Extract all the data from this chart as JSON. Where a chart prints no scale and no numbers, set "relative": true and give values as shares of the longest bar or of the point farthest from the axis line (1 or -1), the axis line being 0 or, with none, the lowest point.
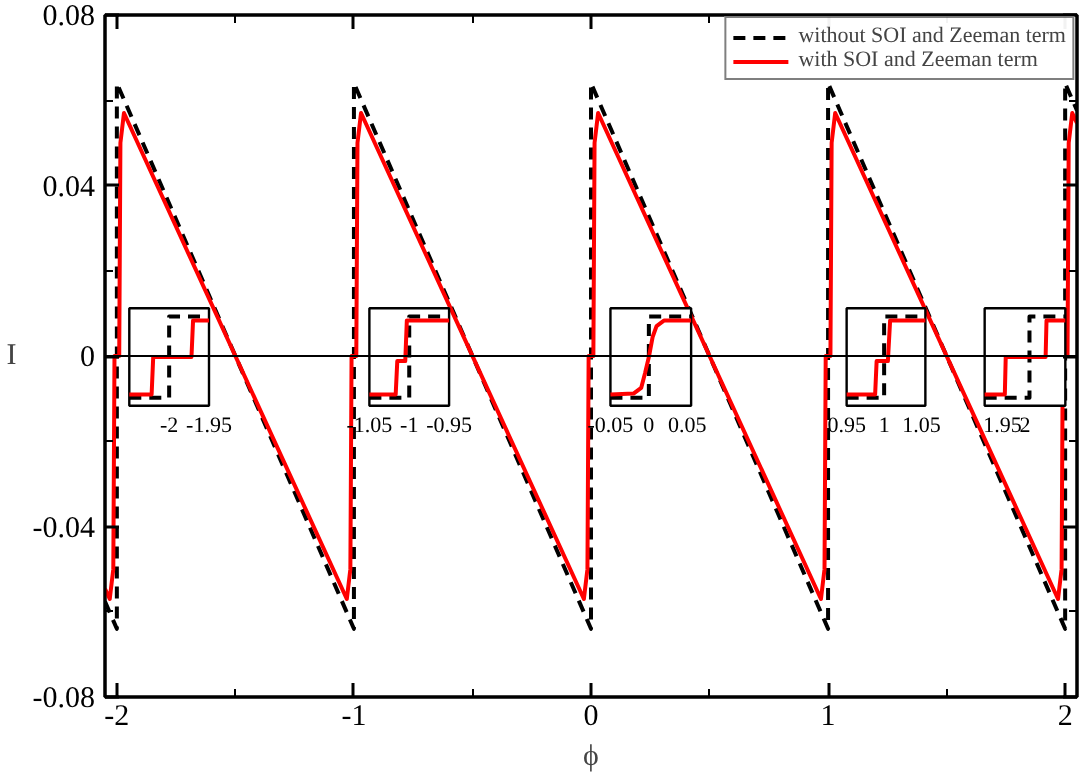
{
  "chart_data": [
    {
      "type": "line",
      "xlabel": "ϕ",
      "ylabel": "I",
      "xlim": [
        -2.05,
        2.05
      ],
      "ylim": [
        -0.08,
        0.08
      ],
      "xticks": [
        -2,
        -1,
        0,
        1,
        2
      ],
      "yticks": [
        -0.08,
        -0.04,
        0,
        0.04,
        0.08
      ],
      "grid": false,
      "legend": "top right",
      "ref_lines": [
        {
          "axis": "y",
          "value": 0,
          "color": "#000000",
          "line_style": "solid"
        }
      ],
      "series": [
        {
          "name": "without SOI and Zeeman term",
          "color": "#000000",
          "line_style": "dashed",
          "x": [
            -2.05,
            -2,
            -2,
            -1,
            -1,
            0,
            0,
            1,
            1,
            2,
            2,
            2.05
          ],
          "values": [
            -0.0576,
            -0.064,
            0.064,
            -0.064,
            0.064,
            -0.064,
            0.064,
            -0.064,
            0.064,
            -0.064,
            0.064,
            0.0576
          ]
        },
        {
          "name": "with SOI and Zeeman term",
          "color": "#ff0000",
          "line_style": "solid",
          "x": [
            -2.05,
            -2.03,
            -2.015,
            -2.01,
            -1.99,
            -1.985,
            -1.97,
            -1.03,
            -1.015,
            -1.01,
            -0.99,
            -0.985,
            -0.97,
            -0.03,
            -0.015,
            -0.01,
            0.01,
            0.015,
            0.03,
            0.97,
            0.985,
            0.99,
            1.01,
            1.015,
            1.03,
            1.97,
            1.985,
            1.99,
            2.01,
            2.015,
            2.03,
            2.05
          ],
          "values": [
            -0.0546,
            -0.057,
            -0.05,
            0,
            0,
            0.05,
            0.057,
            -0.057,
            -0.05,
            0,
            0,
            0.05,
            0.057,
            -0.057,
            -0.05,
            0,
            0,
            0.05,
            0.057,
            -0.057,
            -0.05,
            0,
            0,
            0.05,
            0.057,
            -0.057,
            -0.05,
            0,
            0,
            0.05,
            0.057,
            0.0546
          ]
        }
      ]
    },
    {
      "type": "line",
      "relative": true,
      "tick_labels": "x",
      "xlim": [
        -2.05,
        -1.95
      ],
      "xticks": [
        -2,
        -1.95
      ],
      "series": [
        {
          "color": "#000000",
          "line_style": "dashed",
          "x": [
            -2.05,
            -2,
            -2,
            -1.95
          ],
          "values": [
            0,
            0,
            1,
            1
          ]
        },
        {
          "color": "#ff0000",
          "line_style": "solid",
          "x": [
            -2.05,
            -2.022,
            -2.02,
            -1.972,
            -1.97,
            -1.95
          ],
          "values": [
            0.04,
            0.04,
            0.5,
            0.5,
            0.95,
            0.95
          ]
        }
      ]
    },
    {
      "type": "line",
      "relative": true,
      "tick_labels": "x",
      "xlim": [
        -1.05,
        -0.95
      ],
      "xticks": [
        -1.05,
        -1,
        -0.95
      ],
      "series": [
        {
          "color": "#000000",
          "line_style": "dashed",
          "x": [
            -1.05,
            -1,
            -1,
            -0.95
          ],
          "values": [
            0,
            0,
            1,
            1
          ]
        },
        {
          "color": "#ff0000",
          "line_style": "solid",
          "x": [
            -1.05,
            -1.017,
            -1.015,
            -1.005,
            -1.003,
            -0.95
          ],
          "values": [
            0.04,
            0.04,
            0.45,
            0.45,
            0.95,
            0.95
          ]
        }
      ]
    },
    {
      "type": "line",
      "relative": true,
      "tick_labels": "x",
      "xlim": [
        -0.05,
        0.055
      ],
      "xticks": [
        -0.05,
        0,
        0.05
      ],
      "series": [
        {
          "color": "#000000",
          "line_style": "dashed",
          "x": [
            -0.05,
            0,
            0,
            0.055
          ],
          "values": [
            0,
            0,
            1,
            1
          ]
        },
        {
          "color": "#ff0000",
          "line_style": "solid",
          "x": [
            -0.05,
            -0.02,
            -0.01,
            -0.005,
            0,
            0.005,
            0.01,
            0.02,
            0.055
          ],
          "values": [
            0.04,
            0.05,
            0.12,
            0.3,
            0.5,
            0.75,
            0.88,
            0.95,
            0.95
          ]
        }
      ]
    },
    {
      "type": "line",
      "relative": true,
      "tick_labels": "x",
      "xlim": [
        0.95,
        1.055
      ],
      "xticks": [
        0.95,
        1,
        1.05
      ],
      "series": [
        {
          "color": "#000000",
          "line_style": "dashed",
          "x": [
            0.95,
            1,
            1,
            1.055
          ],
          "values": [
            0,
            0,
            1,
            1
          ]
        },
        {
          "color": "#ff0000",
          "line_style": "solid",
          "x": [
            0.95,
            0.988,
            0.99,
            1.005,
            1.008,
            1.055
          ],
          "values": [
            0.04,
            0.04,
            0.45,
            0.45,
            0.95,
            0.95
          ]
        }
      ]
    },
    {
      "type": "line",
      "relative": true,
      "tick_labels": "x",
      "xlim": [
        1.91,
        2.09
      ],
      "xticks": [
        1.95,
        2
      ],
      "series": [
        {
          "color": "#000000",
          "line_style": "dashed",
          "x": [
            1.91,
            2.01,
            2.01,
            2.09
          ],
          "values": [
            0,
            0,
            1,
            1
          ]
        },
        {
          "color": "#ff0000",
          "line_style": "solid",
          "x": [
            1.91,
            1.955,
            1.957,
            2.046,
            2.048,
            2.09
          ],
          "values": [
            0.04,
            0.04,
            0.5,
            0.5,
            0.95,
            0.95
          ]
        }
      ]
    }
  ]
}
